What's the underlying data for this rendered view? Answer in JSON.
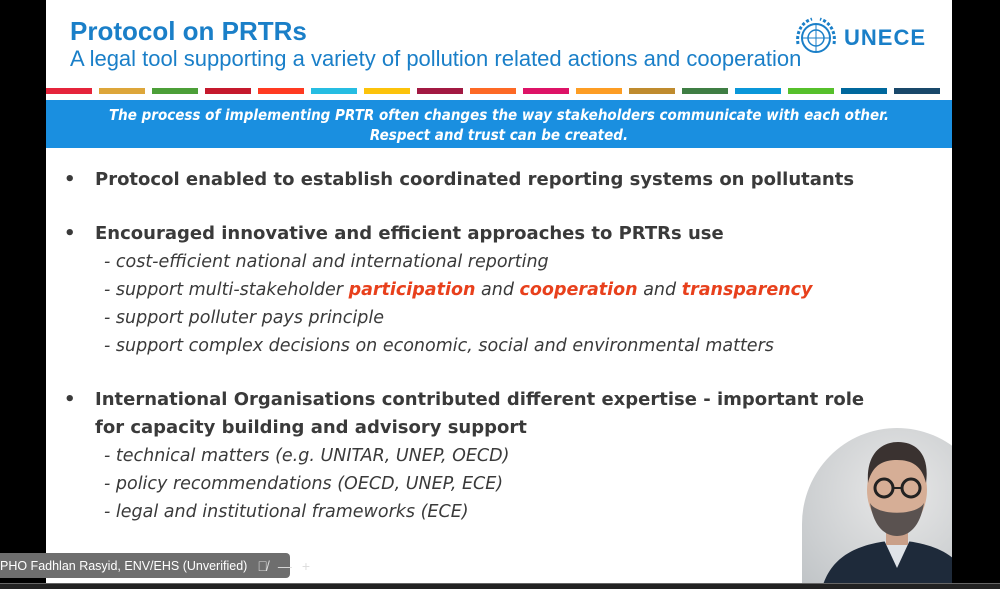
{
  "slide": {
    "title": "Protocol on PRTRs",
    "subtitle": "A legal tool supporting a variety of pollution related actions and cooperation",
    "logo_text": "UNECE",
    "stripe_colors": [
      "#e5243b",
      "#dda63a",
      "#4c9f38",
      "#c5192d",
      "#ff3a21",
      "#26bde2",
      "#fcc30b",
      "#a21942",
      "#fd6925",
      "#dd1367",
      "#fd9d24",
      "#bf8b2e",
      "#3f7e44",
      "#0a97d9",
      "#56c02b",
      "#00689d",
      "#19486a"
    ],
    "banner": "The process of implementing PRTR often changes the way stakeholders communicate with each other. Respect and trust can be created.",
    "bullets": [
      {
        "text": "Protocol enabled to establish coordinated reporting systems on pollutants"
      },
      {
        "text": "Encouraged innovative and efficient approaches to PRTRs use",
        "subs": [
          "- cost-efficient national and international reporting",
          "- support polluter pays principle",
          "- support complex decisions on economic, social and environmental matters"
        ],
        "participation_line": {
          "prefix": "- support multi-stakeholder ",
          "w1": "participation",
          "and1": " and ",
          "w2": "cooperation",
          "and2": " and ",
          "w3": "transparency"
        }
      },
      {
        "text": "International Organisations contributed different expertise - important role for capacity building and advisory support",
        "subs": [
          "- technical matters (e.g. UNITAR, UNEP, OECD)",
          "- policy recommendations (OECD, UNEP, ECE)",
          "- legal and institutional frameworks (ECE)"
        ]
      }
    ],
    "highlight_color": "#e8401c"
  },
  "participant": {
    "name": "PHO Fadhlan Rasyid, ENV/EHS (Unverified)"
  }
}
